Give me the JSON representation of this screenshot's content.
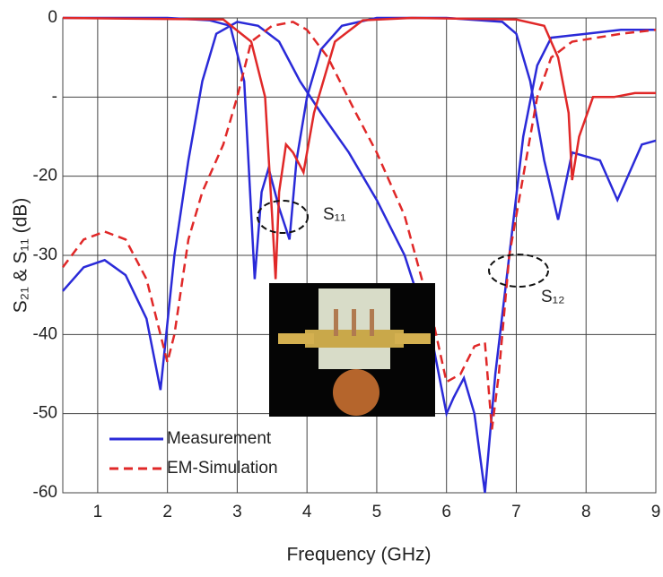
{
  "chart_data": {
    "type": "line",
    "xlabel": "Frequency (GHz)",
    "ylabel": "S₂₁ & S₁₁ (dB)",
    "xlim": [
      0.5,
      9
    ],
    "xticks": [
      1,
      2,
      3,
      4,
      5,
      6,
      7,
      8,
      9
    ],
    "ylim": [
      -60,
      0
    ],
    "yticks": [
      0,
      {
        "value": -10,
        "label": "-"
      },
      -20,
      -30,
      -40,
      -50,
      -60
    ],
    "grid": true,
    "legend": "lower-left",
    "annotations": [
      "S₁₁",
      "S₁₂"
    ],
    "series": [
      {
        "name": "Measurement",
        "color": "#2a2ad8",
        "dash": false,
        "x": [
          0.5,
          0.8,
          1.1,
          1.4,
          1.7,
          1.9,
          2.1,
          2.3,
          2.5,
          2.7,
          3.0,
          3.3,
          3.6,
          3.9,
          4.2,
          4.6,
          5.0,
          5.4,
          5.8,
          6.0,
          6.1,
          6.25,
          6.4,
          6.55,
          6.7,
          6.9,
          7.1,
          7.3,
          7.5,
          8.0,
          8.5,
          9.0
        ],
        "values": [
          -34.5,
          -31.5,
          -30.6,
          -32.5,
          -38,
          -47,
          -30,
          -18,
          -8,
          -2,
          -0.5,
          -1,
          -3,
          -8,
          -12,
          -17,
          -23,
          -30,
          -41,
          -50,
          -48,
          -45.5,
          -50,
          -60,
          -45,
          -30,
          -15,
          -6,
          -2.5,
          -2,
          -1.5,
          -1.5
        ]
      },
      {
        "color": "#2a2ad8",
        "dash": false,
        "x": [
          0.5,
          2.0,
          2.6,
          2.9,
          3.1,
          3.25,
          3.35,
          3.45,
          3.6,
          3.75,
          3.85,
          4.0,
          4.2,
          4.5,
          5.0,
          6.0,
          6.8,
          7.0,
          7.2,
          7.4,
          7.6,
          7.8,
          8.2,
          8.45,
          8.8,
          9.0
        ],
        "values": [
          0,
          0,
          -0.3,
          -1,
          -8,
          -33,
          -22,
          -19,
          -24,
          -28,
          -18,
          -10,
          -4,
          -1,
          0,
          0,
          -0.5,
          -2,
          -8,
          -18,
          -25.5,
          -17,
          -18,
          -23,
          -16,
          -15.5
        ]
      },
      {
        "name": "EM-Simulation",
        "color": "#e02828",
        "dash": true,
        "x": [
          0.5,
          0.8,
          1.1,
          1.4,
          1.7,
          2.0,
          2.1,
          2.3,
          2.5,
          2.8,
          3.0,
          3.2,
          3.5,
          3.8,
          4.0,
          4.3,
          4.7,
          5.0,
          5.4,
          5.8,
          6.0,
          6.2,
          6.4,
          6.55,
          6.65,
          6.75,
          6.9,
          7.1,
          7.3,
          7.5,
          7.8,
          8.5,
          9.0
        ],
        "values": [
          -31.5,
          -28,
          -27,
          -28,
          -33,
          -43.5,
          -40,
          -28,
          -22,
          -16,
          -10,
          -3,
          -1,
          -0.5,
          -1.5,
          -5,
          -12,
          -17,
          -25,
          -38,
          -46,
          -45,
          -41.5,
          -41,
          -52,
          -45,
          -30,
          -20,
          -10,
          -5,
          -3,
          -2,
          -1.5
        ]
      },
      {
        "color": "#e02828",
        "dash": false,
        "x": [
          0.5,
          2.8,
          3.2,
          3.4,
          3.5,
          3.55,
          3.6,
          3.7,
          3.8,
          3.95,
          4.1,
          4.4,
          4.8,
          5.5,
          7.0,
          7.4,
          7.6,
          7.75,
          7.8,
          7.9,
          8.1,
          8.4,
          8.7,
          9.0
        ],
        "values": [
          0,
          -0.2,
          -3,
          -10,
          -25,
          -33,
          -22,
          -16,
          -17,
          -19.5,
          -12,
          -3,
          -0.3,
          0,
          -0.2,
          -1,
          -5,
          -12,
          -20.5,
          -15,
          -10,
          -10,
          -9.5,
          -9.5
        ]
      }
    ]
  }
}
